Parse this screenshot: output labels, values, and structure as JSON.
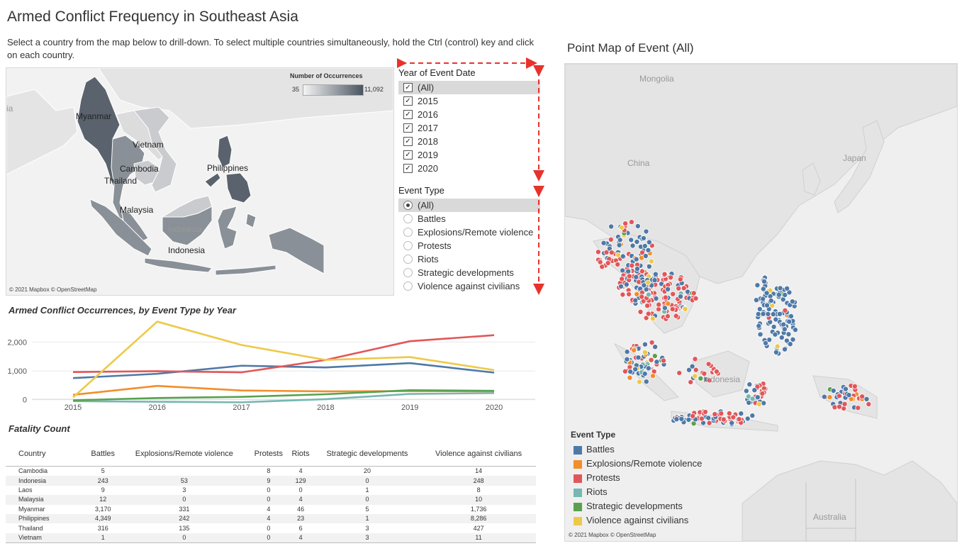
{
  "header": {
    "title": "Armed Conflict Frequency in Southeast Asia",
    "instructions": "Select a country from the map below to drill-down. To select multiple countries simultaneously, hold the Ctrl (control) key and click on each country."
  },
  "left_map": {
    "legend_title": "Number of Occurrences",
    "legend_min": "35",
    "legend_max": "11,092",
    "country_labels": [
      "Myanmar",
      "Vietnam",
      "Cambodia",
      "Thailand",
      "Philippines",
      "Malaysia",
      "Indonesia",
      "Indonesia"
    ],
    "edge_label": "ia",
    "credit": "© 2021 Mapbox © OpenStreetMap",
    "colors": {
      "dark": "#5a636d",
      "mid": "#8a9097",
      "light": "#c9cbce",
      "lighter": "#dcdcdc"
    }
  },
  "filters": {
    "year": {
      "title": "Year of Event Date",
      "items": [
        {
          "label": "(All)",
          "checked": true,
          "selected": true
        },
        {
          "label": "2015",
          "checked": true
        },
        {
          "label": "2016",
          "checked": true
        },
        {
          "label": "2017",
          "checked": true
        },
        {
          "label": "2018",
          "checked": true
        },
        {
          "label": "2019",
          "checked": true
        },
        {
          "label": "2020",
          "checked": true
        }
      ]
    },
    "event_type": {
      "title": "Event Type",
      "items": [
        {
          "label": "(All)",
          "selected": true
        },
        {
          "label": "Battles"
        },
        {
          "label": "Explosions/Remote violence"
        },
        {
          "label": "Protests"
        },
        {
          "label": "Riots"
        },
        {
          "label": "Strategic developments"
        },
        {
          "label": "Violence against civilians"
        }
      ]
    },
    "arrow_color": "#e8322c"
  },
  "chart_data": {
    "type": "line",
    "title": "Armed Conflict Occurrences, by Event Type by Year",
    "x": [
      "2015",
      "2016",
      "2017",
      "2018",
      "2019",
      "2020"
    ],
    "yticks": [
      "0",
      "1,000",
      "2,000"
    ],
    "ylim": [
      -130,
      2650
    ],
    "series": [
      {
        "name": "Battles",
        "color": "#4e79a7",
        "values": [
          750,
          900,
          1180,
          1120,
          1270,
          940
        ]
      },
      {
        "name": "Explosions/Remote violence",
        "color": "#f28e2b",
        "values": [
          170,
          480,
          320,
          290,
          300,
          290
        ]
      },
      {
        "name": "Protests",
        "color": "#e15759",
        "values": [
          960,
          990,
          950,
          1380,
          2030,
          2240
        ]
      },
      {
        "name": "Riots",
        "color": "#76b7b2",
        "values": [
          -50,
          -70,
          -90,
          20,
          200,
          230
        ]
      },
      {
        "name": "Strategic developments",
        "color": "#59a14f",
        "values": [
          -20,
          60,
          100,
          190,
          330,
          310
        ]
      },
      {
        "name": "Violence against civilians",
        "color": "#edc948",
        "values": [
          80,
          2710,
          1900,
          1380,
          1480,
          1030
        ]
      }
    ]
  },
  "fatality_table": {
    "title": "Fatality Count",
    "columns": [
      "Country",
      "Battles",
      "Explosions/Remote violence",
      "Protests",
      "Riots",
      "Strategic developments",
      "Violence against civilians"
    ],
    "rows": [
      [
        "Cambodia",
        "5",
        "",
        "8",
        "4",
        "20",
        "14"
      ],
      [
        "Indonesia",
        "243",
        "53",
        "9",
        "129",
        "0",
        "248"
      ],
      [
        "Laos",
        "9",
        "3",
        "0",
        "0",
        "1",
        "8"
      ],
      [
        "Malaysia",
        "12",
        "0",
        "0",
        "4",
        "0",
        "10"
      ],
      [
        "Myanmar",
        "3,170",
        "331",
        "4",
        "46",
        "5",
        "1,736"
      ],
      [
        "Philippines",
        "4,349",
        "242",
        "4",
        "23",
        "1",
        "8,286"
      ],
      [
        "Thailand",
        "316",
        "135",
        "0",
        "6",
        "3",
        "427"
      ],
      [
        "Vietnam",
        "1",
        "0",
        "0",
        "4",
        "3",
        "11"
      ]
    ]
  },
  "right_map": {
    "title": "Point Map of Event (All)",
    "place_labels": [
      "Mongolia",
      "China",
      "Japan",
      "Indonesia",
      "Australia"
    ],
    "credit": "© 2021 Mapbox © OpenStreetMap",
    "legend_title": "Event Type",
    "legend": [
      {
        "label": "Battles",
        "color": "#4e79a7"
      },
      {
        "label": "Explosions/Remote violence",
        "color": "#f28e2b"
      },
      {
        "label": "Protests",
        "color": "#e15759"
      },
      {
        "label": "Riots",
        "color": "#76b7b2"
      },
      {
        "label": "Strategic developments",
        "color": "#59a14f"
      },
      {
        "label": "Violence against civilians",
        "color": "#edc948"
      }
    ]
  }
}
